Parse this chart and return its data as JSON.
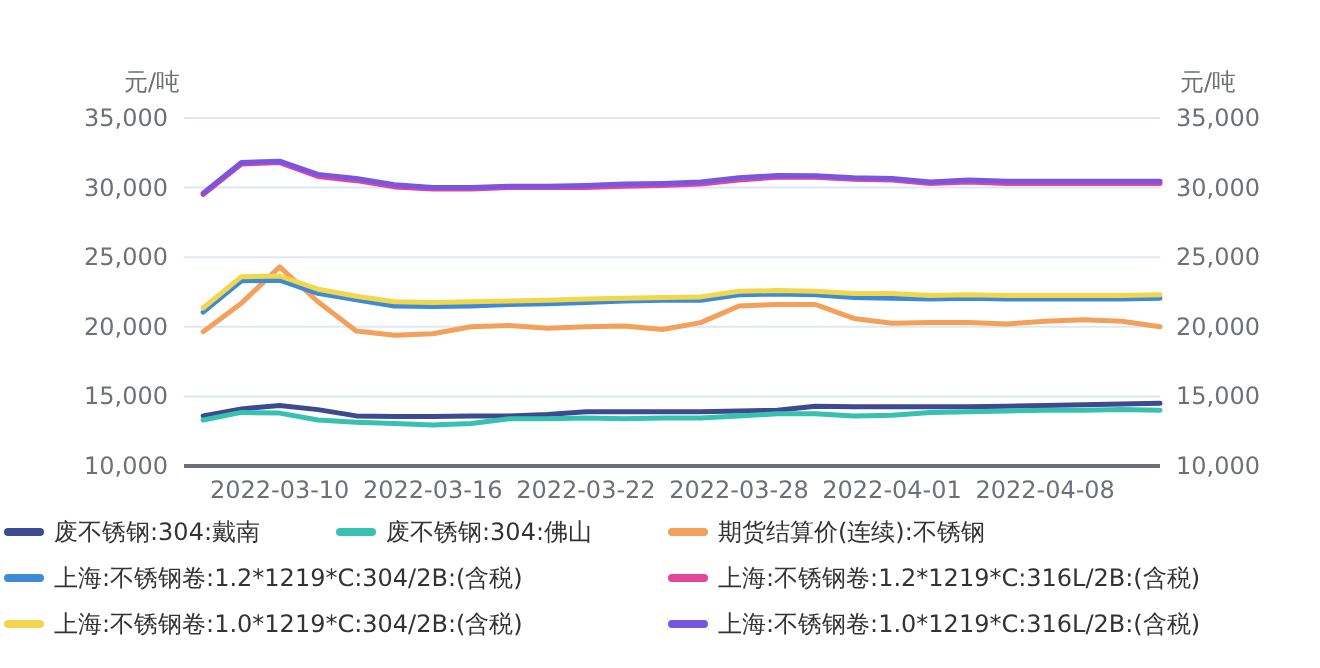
{
  "chart_data": {
    "type": "line",
    "ylabel": "元/吨",
    "y2label": "元/吨",
    "categories": [
      null,
      null,
      "2022-03-10",
      null,
      null,
      null,
      "2022-03-16",
      null,
      null,
      null,
      "2022-03-22",
      null,
      null,
      null,
      "2022-03-28",
      null,
      null,
      null,
      "2022-04-01",
      null,
      null,
      null,
      "2022-04-08",
      null,
      null,
      null
    ],
    "ylim": [
      10000,
      35000
    ],
    "yticks": [
      {
        "value": 10000,
        "label": "10,000"
      },
      {
        "value": 15000,
        "label": "15,000"
      },
      {
        "value": 20000,
        "label": "20,000"
      },
      {
        "value": 25000,
        "label": "25,000"
      },
      {
        "value": 30000,
        "label": "30,000"
      },
      {
        "value": 35000,
        "label": "35,000"
      }
    ],
    "y2lim": [
      10000,
      35000
    ],
    "y2ticks": [
      {
        "value": 10000,
        "label": "10,000"
      },
      {
        "value": 15000,
        "label": "15,000"
      },
      {
        "value": 20000,
        "label": "20,000"
      },
      {
        "value": 25000,
        "label": "25,000"
      },
      {
        "value": 30000,
        "label": "30,000"
      },
      {
        "value": 35000,
        "label": "35,000"
      }
    ],
    "grid": "y",
    "legend": "bottom",
    "marker": "none",
    "line_style": "solid",
    "series": [
      {
        "name": "废不锈钢:304:戴南",
        "color": "#3d4a8f",
        "values": [
          13600,
          14100,
          14350,
          14050,
          13600,
          13550,
          13550,
          13600,
          13600,
          13700,
          13900,
          13900,
          13900,
          13900,
          13950,
          14000,
          14300,
          14250,
          14250,
          14250,
          14250,
          14300,
          14350,
          14400,
          14450,
          14500
        ]
      },
      {
        "name": "废不锈钢:304:佛山",
        "color": "#37c1b1",
        "values": [
          13300,
          13850,
          13800,
          13300,
          13150,
          13050,
          12950,
          13050,
          13400,
          13400,
          13450,
          13400,
          13450,
          13450,
          13600,
          13750,
          13750,
          13600,
          13650,
          13850,
          13900,
          13950,
          14000,
          14000,
          14050,
          14000
        ]
      },
      {
        "name": "期货结算价(连续):不锈钢",
        "color": "#f3a05a",
        "values": [
          19650,
          21700,
          24300,
          21800,
          19700,
          19400,
          19500,
          20000,
          20100,
          19900,
          20000,
          20050,
          19800,
          20300,
          21500,
          21600,
          21600,
          20600,
          20250,
          20300,
          20300,
          20200,
          20400,
          20500,
          20400,
          20000
        ]
      },
      {
        "name": "上海:不锈钢卷:1.2*1219*C:304/2B:(含税)",
        "color": "#3d8bd6",
        "values": [
          21050,
          23300,
          23350,
          22400,
          21950,
          21500,
          21450,
          21500,
          21600,
          21650,
          21750,
          21850,
          21900,
          21900,
          22300,
          22350,
          22300,
          22100,
          22050,
          22000,
          22050,
          22000,
          22000,
          22000,
          22000,
          22050
        ]
      },
      {
        "name": "上海:不锈钢卷:1.2*1219*C:316L/2B:(含税)",
        "color": "#e0469c",
        "values": [
          29500,
          31700,
          31800,
          30800,
          30500,
          30050,
          29900,
          29900,
          30000,
          30000,
          30000,
          30100,
          30150,
          30250,
          30550,
          30750,
          30750,
          30600,
          30550,
          30300,
          30400,
          30300,
          30300,
          30300,
          30300,
          30300
        ]
      },
      {
        "name": "上海:不锈钢卷:1.0*1219*C:304/2B:(含税)",
        "color": "#f2d64c",
        "values": [
          21350,
          23600,
          23650,
          22700,
          22200,
          21800,
          21750,
          21800,
          21850,
          21900,
          22000,
          22050,
          22100,
          22150,
          22550,
          22600,
          22550,
          22400,
          22400,
          22250,
          22300,
          22250,
          22250,
          22250,
          22250,
          22300
        ]
      },
      {
        "name": "上海:不锈钢卷:1.0*1219*C:316L/2B:(含税)",
        "color": "#7a55e0",
        "values": [
          29600,
          31800,
          31900,
          30950,
          30650,
          30200,
          30000,
          30000,
          30100,
          30100,
          30150,
          30250,
          30300,
          30400,
          30700,
          30870,
          30850,
          30700,
          30650,
          30400,
          30550,
          30450,
          30450,
          30450,
          30450,
          30450
        ]
      }
    ]
  }
}
